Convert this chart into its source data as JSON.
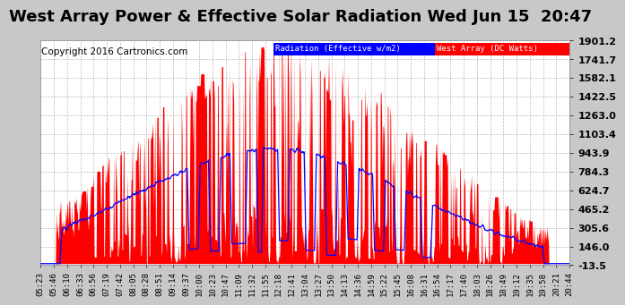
{
  "title": "West Array Power & Effective Solar Radiation Wed Jun 15  20:47",
  "copyright": "Copyright 2016 Cartronics.com",
  "legend_labels": [
    "Radiation (Effective w/m2)",
    "West Array (DC Watts)"
  ],
  "legend_colors": [
    "#0000ff",
    "#ff0000"
  ],
  "background_color": "#c8c8c8",
  "plot_bg_color": "#ffffff",
  "grid_color": "#aaaaaa",
  "yticks": [
    -13.5,
    146.0,
    305.6,
    465.2,
    624.7,
    784.3,
    943.9,
    1103.4,
    1263.0,
    1422.5,
    1582.1,
    1741.7,
    1901.2
  ],
  "ymin": -13.5,
  "ymax": 1901.2,
  "red_fill_color": "#ff0000",
  "blue_line_color": "#0000ff",
  "title_fontsize": 13,
  "copyright_fontsize": 7.5,
  "tick_label_fontsize": 6.5,
  "ytick_fontsize": 8,
  "time_labels": [
    "05:23",
    "05:46",
    "06:10",
    "06:33",
    "06:56",
    "07:19",
    "07:42",
    "08:05",
    "08:28",
    "08:51",
    "09:14",
    "09:37",
    "10:00",
    "10:23",
    "10:47",
    "11:09",
    "11:32",
    "11:55",
    "12:18",
    "12:41",
    "13:04",
    "13:27",
    "13:50",
    "14:13",
    "14:36",
    "14:59",
    "15:22",
    "15:45",
    "16:08",
    "16:31",
    "16:54",
    "17:17",
    "17:40",
    "18:03",
    "18:26",
    "18:49",
    "19:12",
    "19:35",
    "19:58",
    "20:21",
    "20:44"
  ]
}
